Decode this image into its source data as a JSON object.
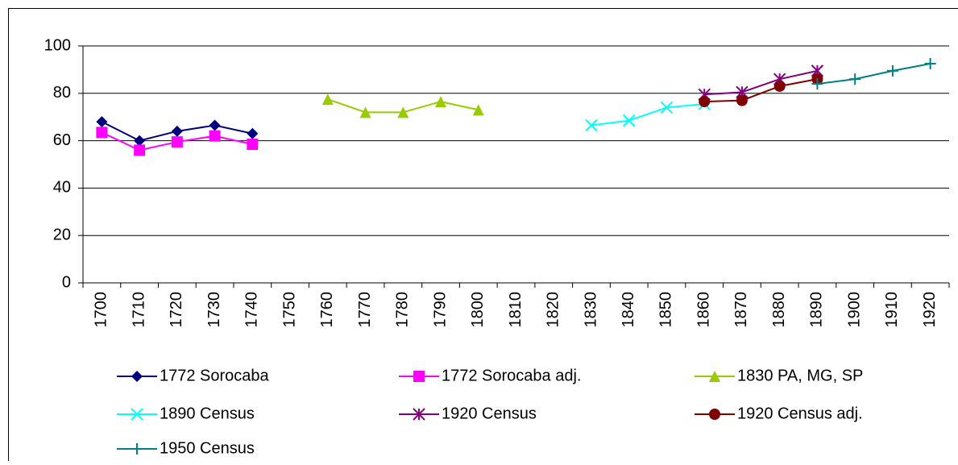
{
  "chart_data": {
    "type": "line",
    "categories": [
      "1700",
      "1710",
      "1720",
      "1730",
      "1740",
      "1750",
      "1760",
      "1770",
      "1780",
      "1790",
      "1800",
      "1810",
      "1820",
      "1830",
      "1840",
      "1850",
      "1860",
      "1870",
      "1880",
      "1890",
      "1900",
      "1910",
      "1920"
    ],
    "ylim": [
      0,
      100
    ],
    "yticks": [
      0,
      20,
      40,
      60,
      80,
      100
    ],
    "grid": true,
    "series": [
      {
        "name": "1772 Sorocaba",
        "color": "#000080",
        "marker": "diamond",
        "values": [
          68,
          60,
          64,
          66.5,
          63,
          null,
          null,
          null,
          null,
          null,
          null,
          null,
          null,
          null,
          null,
          null,
          null,
          null,
          null,
          null,
          null,
          null,
          null
        ]
      },
      {
        "name": "1772 Sorocaba adj.",
        "color": "#ff00ff",
        "marker": "square",
        "values": [
          63.5,
          56,
          59.5,
          62,
          58.5,
          null,
          null,
          null,
          null,
          null,
          null,
          null,
          null,
          null,
          null,
          null,
          null,
          null,
          null,
          null,
          null,
          null,
          null
        ]
      },
      {
        "name": "1830 PA, MG, SP",
        "color": "#99cc00",
        "marker": "triangle",
        "values": [
          null,
          null,
          null,
          null,
          null,
          null,
          77.5,
          72,
          72,
          76.5,
          73,
          null,
          null,
          null,
          null,
          null,
          null,
          null,
          null,
          null,
          null,
          null,
          null
        ]
      },
      {
        "name": "1890 Census",
        "color": "#00ffff",
        "marker": "x",
        "values": [
          null,
          null,
          null,
          null,
          null,
          null,
          null,
          null,
          null,
          null,
          null,
          null,
          null,
          66.5,
          68.5,
          74,
          75.5,
          null,
          null,
          null,
          null,
          null,
          null
        ]
      },
      {
        "name": "1920 Census",
        "color": "#800080",
        "marker": "star",
        "values": [
          null,
          null,
          null,
          null,
          null,
          null,
          null,
          null,
          null,
          null,
          null,
          null,
          null,
          null,
          null,
          null,
          79.5,
          80.5,
          86,
          89.5,
          null,
          null,
          null
        ]
      },
      {
        "name": "1920 Census adj.",
        "color": "#800000",
        "marker": "circle",
        "values": [
          null,
          null,
          null,
          null,
          null,
          null,
          null,
          null,
          null,
          null,
          null,
          null,
          null,
          null,
          null,
          null,
          76.5,
          77,
          83,
          86,
          null,
          null,
          null
        ]
      },
      {
        "name": "1950 Census",
        "color": "#008080",
        "marker": "plus",
        "values": [
          null,
          null,
          null,
          null,
          null,
          null,
          null,
          null,
          null,
          null,
          null,
          null,
          null,
          null,
          null,
          null,
          null,
          null,
          null,
          84,
          86,
          89.5,
          92.5
        ]
      }
    ]
  }
}
